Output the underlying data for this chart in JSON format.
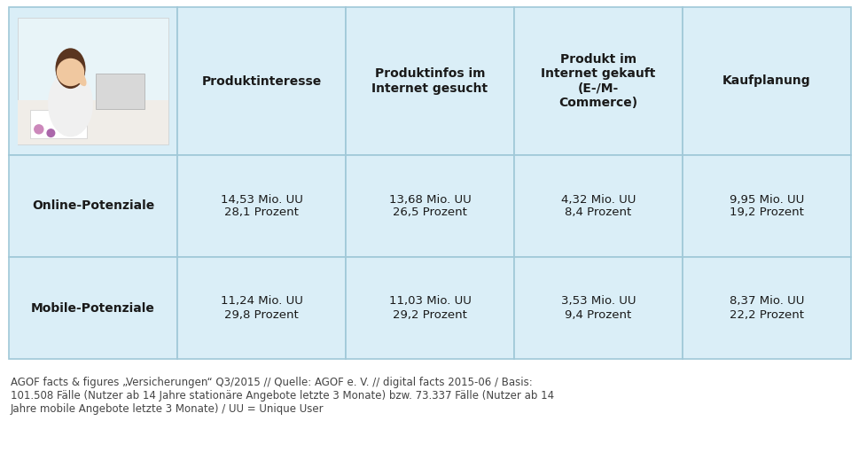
{
  "bg_color": "#ffffff",
  "light_blue": "#daeef7",
  "border_color": "#a0c8d8",
  "text_color": "#1a1a1a",
  "bold_color": "#1a1a1a",
  "col_headers": [
    "Produktinteresse",
    "Produktinfos im\nInternet gesucht",
    "Produkt im\nInternet gekauft\n(E-/M-\nCommerce)",
    "Kaufplanung"
  ],
  "row_labels": [
    "Online-Potenziale",
    "Mobile-Potenziale"
  ],
  "cell_data": [
    [
      "14,53 Mio. UU\n28,1 Prozent",
      "13,68 Mio. UU\n26,5 Prozent",
      "4,32 Mio. UU\n8,4 Prozent",
      "9,95 Mio. UU\n19,2 Prozent"
    ],
    [
      "11,24 Mio. UU\n29,8 Prozent",
      "11,03 Mio. UU\n29,2 Prozent",
      "3,53 Mio. UU\n9,4 Prozent",
      "8,37 Mio. UU\n22,2 Prozent"
    ]
  ],
  "footer_text": "AGOF facts & figures „Versicherungen“ Q3/2015 // Quelle: AGOF e. V. // digital facts 2015-06 / Basis:\n101.508 Fälle (Nutzer ab 14 Jahre stationäre Angebote letzte 3 Monate) bzw. 73.337 Fälle (Nutzer ab 14\nJahre mobile Angebote letzte 3 Monate) / UU = Unique User",
  "footer_fontsize": 8.5,
  "header_fontsize": 10.0,
  "cell_fontsize": 9.5,
  "label_fontsize": 10.0
}
